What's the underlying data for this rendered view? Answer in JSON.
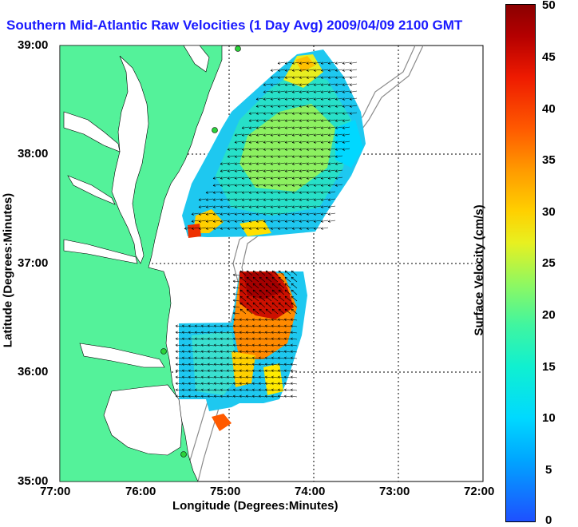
{
  "title": "Southern Mid-Atlantic Raw Velocities (1 Day Avg) 2009/04/09 2100 GMT",
  "x_axis": {
    "label": "Longitude (Degrees:Minutes)",
    "ticks": [
      "77:00",
      "76:00",
      "75:00",
      "74:00",
      "73:00",
      "72:00"
    ]
  },
  "y_axis": {
    "label": "Latitude (Degrees:Minutes)",
    "ticks": [
      "39:00",
      "38:00",
      "37:00",
      "36:00",
      "35:00"
    ]
  },
  "colorbar": {
    "label": "Surface Velocity (cm/s)",
    "ticks": [
      "50",
      "45",
      "40",
      "35",
      "30",
      "25",
      "20",
      "15",
      "10",
      "5",
      "0"
    ]
  },
  "colors": {
    "land": "#54f29a",
    "title": "#1a1aff",
    "grid": "#000000",
    "bathymetry": "#8a8a8a"
  }
}
